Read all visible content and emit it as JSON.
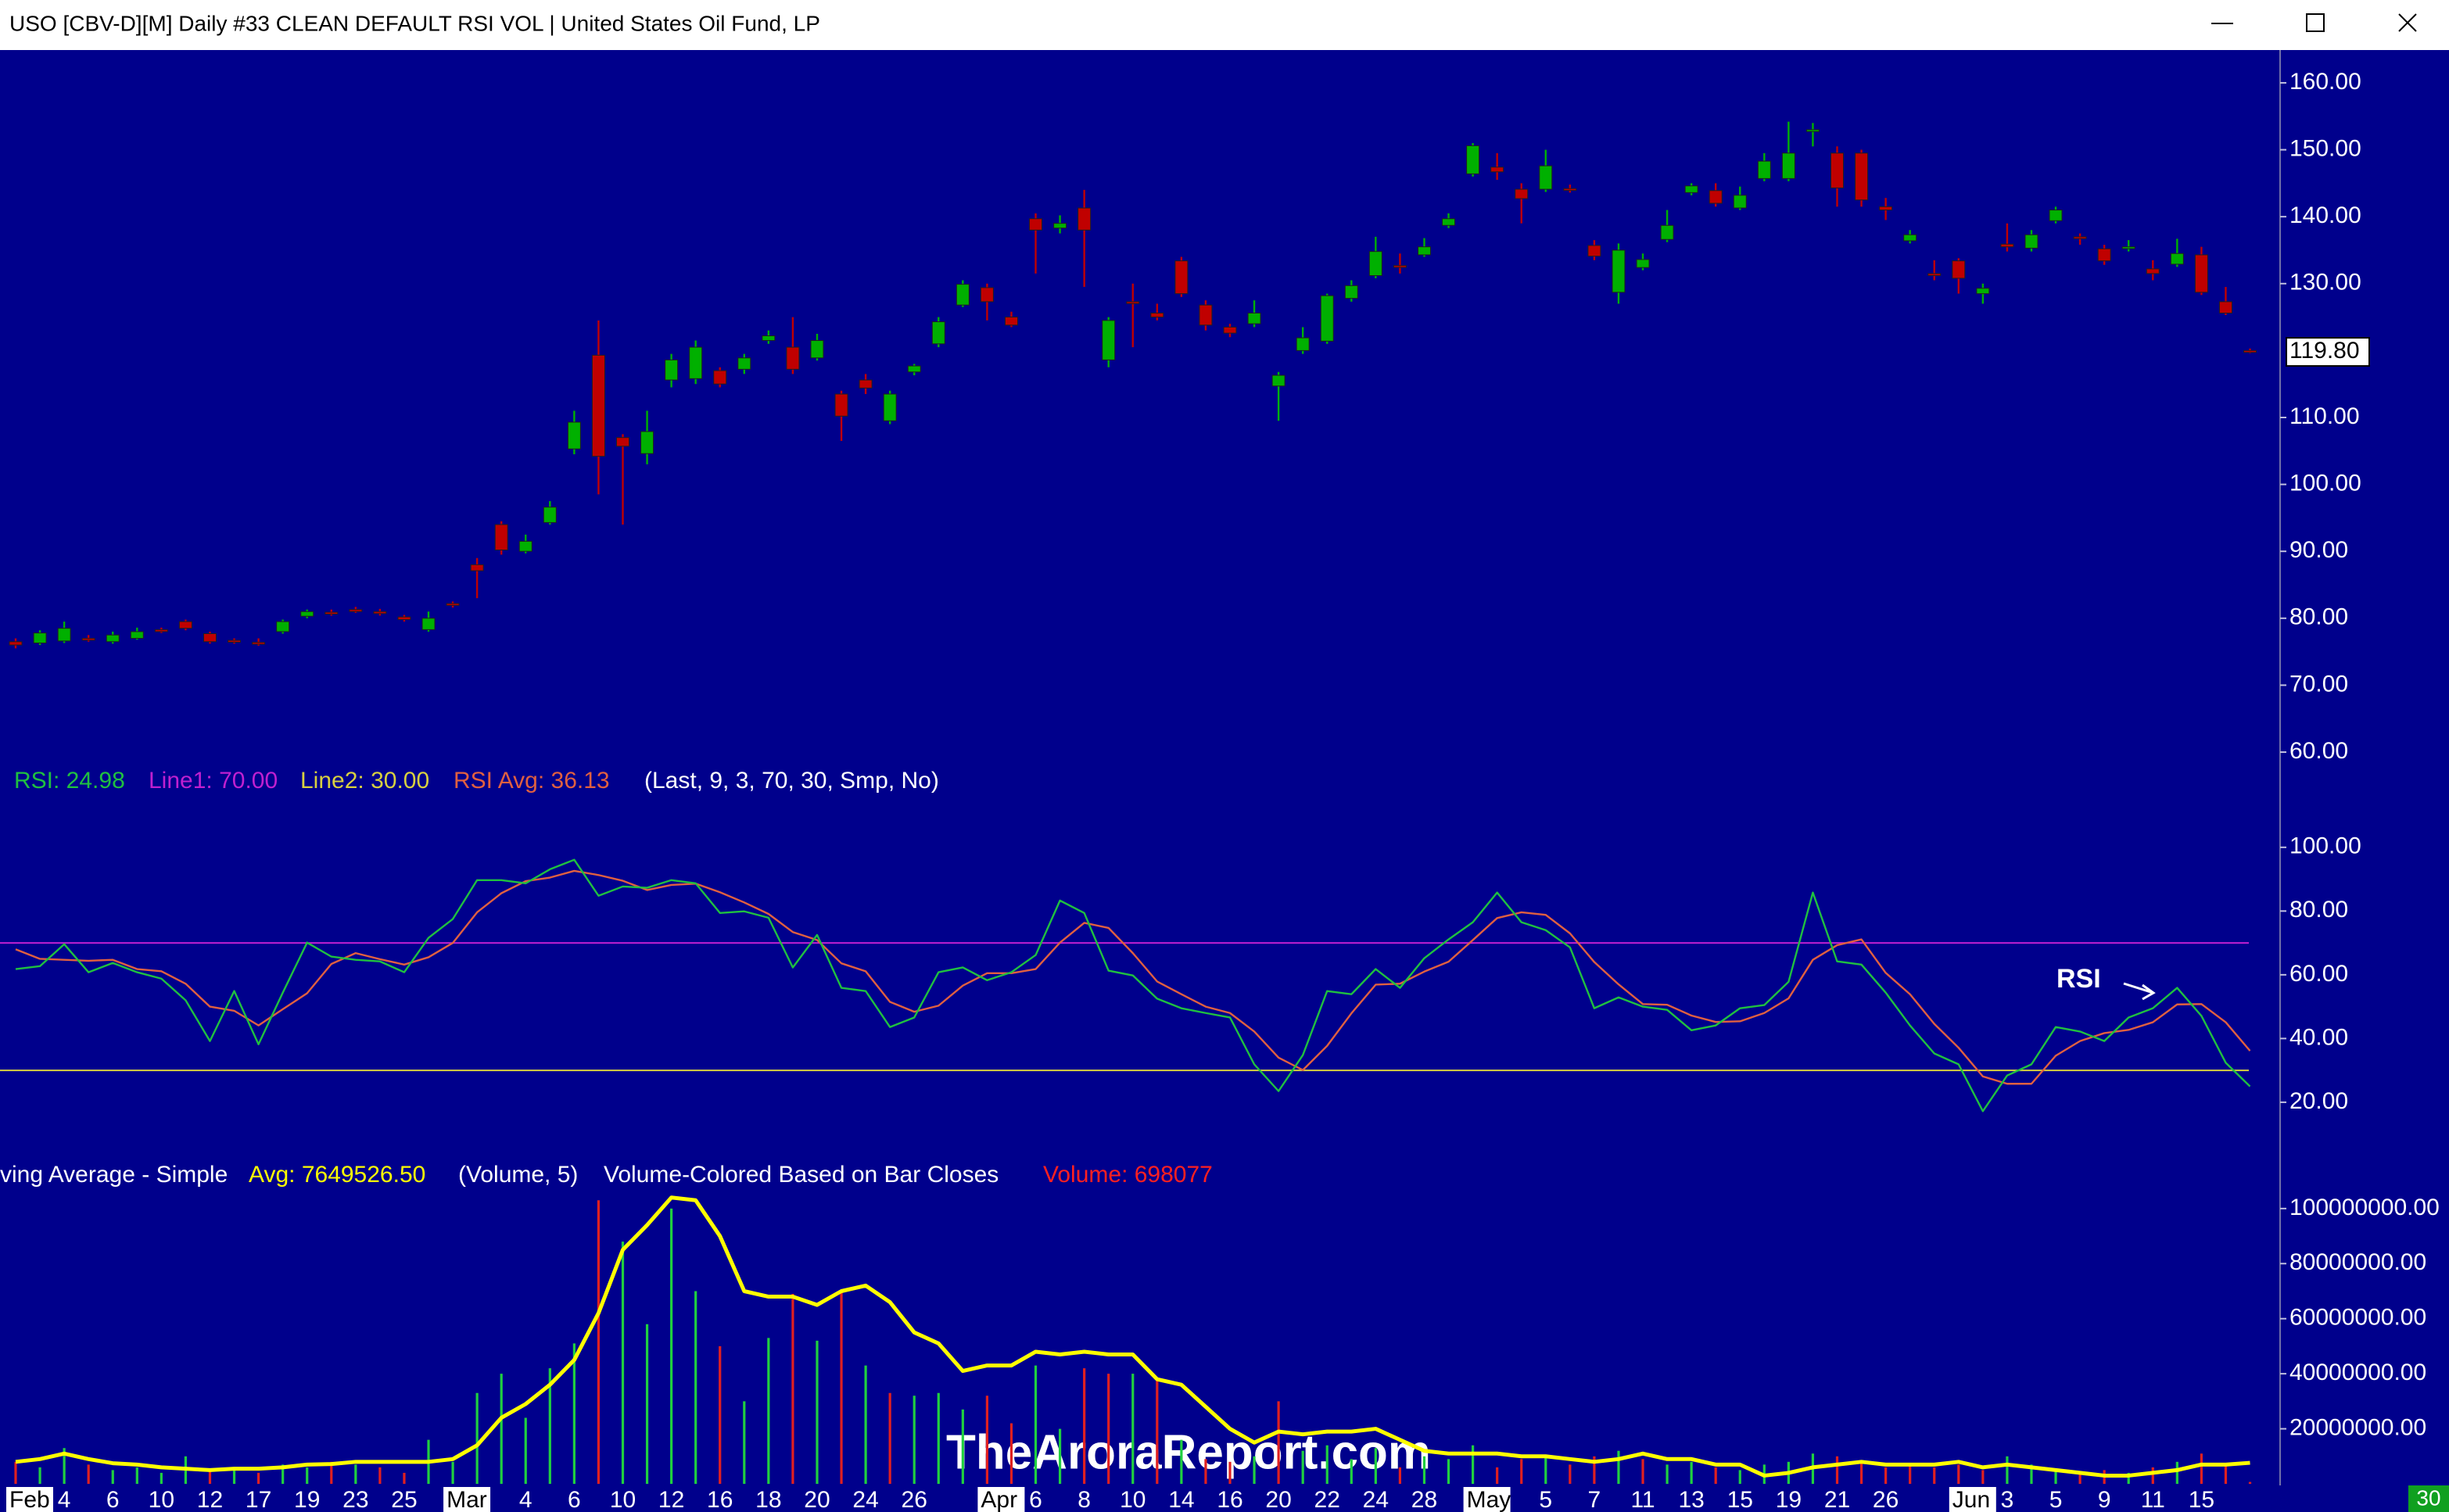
{
  "window": {
    "title": "USO [CBV-D][M]  Daily #33 CLEAN DEFAULT RSI VOL | United States Oil Fund, LP"
  },
  "watermark": "TheAroraReport.com",
  "corner_badge": "30",
  "chart_data": [
    {
      "type": "candlestick",
      "up_color": "#00b000",
      "down_color": "#c00000",
      "ylim": [
        57.9,
        164.9
      ],
      "yticks": [
        {
          "value": 160,
          "label": "160.00"
        },
        {
          "value": 150,
          "label": "150.00"
        },
        {
          "value": 140,
          "label": "140.00"
        },
        {
          "value": 130,
          "label": "130.00"
        },
        {
          "value": 110,
          "label": "110.00"
        },
        {
          "value": 100,
          "label": "100.00"
        },
        {
          "value": 90,
          "label": "90.00"
        },
        {
          "value": 80,
          "label": "80.00"
        },
        {
          "value": 70,
          "label": "70.00"
        },
        {
          "value": 60,
          "label": "60.00"
        }
      ],
      "last_label": "119.80",
      "categories": [
        "Feb",
        null,
        "4",
        null,
        "6",
        null,
        "10",
        null,
        "12",
        null,
        "17",
        null,
        "19",
        null,
        "23",
        null,
        "25",
        null,
        "Mar",
        null,
        null,
        "4",
        null,
        "6",
        null,
        "10",
        null,
        "12",
        null,
        "16",
        null,
        "18",
        null,
        "20",
        null,
        "24",
        null,
        "26",
        null,
        null,
        "Apr",
        null,
        "6",
        null,
        "8",
        null,
        "10",
        null,
        "14",
        null,
        "16",
        null,
        "20",
        null,
        "22",
        null,
        "24",
        null,
        "28",
        null,
        "May",
        null,
        null,
        "5",
        null,
        "7",
        null,
        "11",
        null,
        "13",
        null,
        "15",
        null,
        "19",
        null,
        "21",
        null,
        "26",
        null,
        null,
        "Jun",
        null,
        "3",
        null,
        "5",
        null,
        "9",
        null,
        "11",
        null,
        "15"
      ],
      "ohlc": [
        [
          76.5,
          77,
          75.5,
          76
        ],
        [
          76.3,
          78.2,
          76,
          77.8
        ],
        [
          76.6,
          79.5,
          76.3,
          78.5
        ],
        [
          77,
          77.5,
          76.5,
          76.8
        ],
        [
          76.5,
          78,
          76.2,
          77.5
        ],
        [
          77,
          78.6,
          76.8,
          78
        ],
        [
          78.3,
          78.6,
          77.8,
          78
        ],
        [
          79.5,
          79.8,
          78.2,
          78.5
        ],
        [
          77.7,
          78,
          76.2,
          76.5
        ],
        [
          76.7,
          77,
          76.2,
          76.5
        ],
        [
          76.4,
          77,
          75.9,
          76.2
        ],
        [
          78,
          79.8,
          77.7,
          79.5
        ],
        [
          80.3,
          81.3,
          80,
          81
        ],
        [
          80.9,
          81.3,
          80.4,
          80.7
        ],
        [
          81.3,
          81.7,
          80.8,
          81
        ],
        [
          81,
          81.4,
          80.4,
          80.7
        ],
        [
          80.2,
          80.5,
          79.5,
          79.8
        ],
        [
          78.3,
          81,
          78,
          80
        ],
        [
          82.2,
          82.5,
          81.6,
          82
        ],
        [
          88,
          89,
          83,
          87.1
        ],
        [
          94,
          94.5,
          89.5,
          90.2
        ],
        [
          90,
          92.5,
          89.7,
          91.5
        ],
        [
          94.3,
          97.5,
          94,
          96.6
        ],
        [
          105.3,
          111,
          104.5,
          109.3
        ],
        [
          119.3,
          124.5,
          98.5,
          104.2
        ],
        [
          107,
          107.5,
          94,
          105.7
        ],
        [
          104.6,
          111,
          103,
          107.9
        ],
        [
          115.6,
          119.5,
          114.5,
          118.6
        ],
        [
          115.8,
          121.5,
          115,
          120.5
        ],
        [
          117,
          117.5,
          114.5,
          115
        ],
        [
          117.2,
          119.5,
          116.5,
          118.9
        ],
        [
          121.5,
          123,
          121,
          122.2
        ],
        [
          120.5,
          125,
          116.5,
          117.2
        ],
        [
          118.9,
          122.5,
          118.5,
          121.5
        ],
        [
          113.5,
          114,
          106.5,
          110.2
        ],
        [
          115.6,
          116.5,
          113.5,
          114.4
        ],
        [
          109.5,
          114,
          109,
          113.5
        ],
        [
          116.8,
          118,
          116.3,
          117.7
        ],
        [
          121,
          125,
          120.5,
          124.3
        ],
        [
          126.8,
          130.5,
          126.5,
          129.9
        ],
        [
          129.4,
          130,
          124.5,
          127.3
        ],
        [
          125,
          125.8,
          123.5,
          123.8
        ],
        [
          139.7,
          140.5,
          131.5,
          138
        ],
        [
          138.3,
          140.2,
          137.5,
          139
        ],
        [
          141.3,
          144,
          129.5,
          138
        ],
        [
          118.6,
          125,
          117.5,
          124.5
        ],
        [
          127.3,
          130,
          120.5,
          127.1
        ],
        [
          125.6,
          127,
          124.5,
          125
        ],
        [
          133.4,
          134,
          128,
          128.5
        ],
        [
          126.8,
          127.5,
          123,
          123.8
        ],
        [
          123.5,
          124,
          122,
          122.6
        ],
        [
          124,
          127.5,
          123.5,
          125.6
        ],
        [
          114.7,
          116.8,
          109.5,
          116.3
        ],
        [
          120,
          123.5,
          119.5,
          121.9
        ],
        [
          121.4,
          128.5,
          121,
          128.2
        ],
        [
          127.8,
          130.5,
          127.3,
          129.7
        ],
        [
          131.2,
          137,
          130.8,
          134.8
        ],
        [
          132.7,
          134.5,
          131.5,
          132.5
        ],
        [
          134.3,
          136.8,
          134,
          135.5
        ],
        [
          138.7,
          140.5,
          138.3,
          139.7
        ],
        [
          146.4,
          151,
          146,
          150.6
        ],
        [
          147.4,
          149.5,
          145.5,
          146.7
        ],
        [
          144.1,
          145,
          139,
          142.7
        ],
        [
          144.1,
          150,
          143.7,
          147.6
        ],
        [
          144.2,
          144.8,
          143.6,
          144
        ],
        [
          135.7,
          136.5,
          133.5,
          134.1
        ],
        [
          128.7,
          136,
          127,
          135
        ],
        [
          132.4,
          134.5,
          132,
          133.6
        ],
        [
          136.6,
          141,
          136.2,
          138.7
        ],
        [
          143.6,
          145,
          143.2,
          144.6
        ],
        [
          143.9,
          145,
          141.5,
          142
        ],
        [
          141.3,
          144.5,
          141,
          143.2
        ],
        [
          145.7,
          149.5,
          145.3,
          148.3
        ],
        [
          145.7,
          154.2,
          145.3,
          149.5
        ],
        [
          152.8,
          154,
          150.5,
          153
        ],
        [
          149.5,
          150.5,
          141.5,
          144.3
        ],
        [
          149.5,
          150,
          141.5,
          142.5
        ],
        [
          141.5,
          142.8,
          139.5,
          141
        ],
        [
          136.4,
          138,
          136,
          137.3
        ],
        [
          131.5,
          133.5,
          130.5,
          131.2
        ],
        [
          133.4,
          133.8,
          128.5,
          130.8
        ],
        [
          128.5,
          130,
          127,
          129.3
        ],
        [
          135.9,
          139,
          134.8,
          135.5
        ],
        [
          135.3,
          138,
          134.8,
          137.3
        ],
        [
          139.4,
          141.5,
          139,
          141
        ],
        [
          137,
          137.5,
          135.8,
          136.8
        ],
        [
          135.2,
          135.8,
          132.8,
          133.4
        ],
        [
          135.3,
          136.5,
          134.8,
          135.5
        ],
        [
          132.2,
          133.5,
          130.5,
          131.5
        ],
        [
          132.9,
          136.7,
          132.5,
          134.5
        ],
        [
          134.3,
          135.5,
          128.3,
          128.7
        ],
        [
          127.3,
          129.5,
          125.3,
          125.6
        ],
        [
          120,
          120.3,
          119.6,
          119.8
        ]
      ]
    },
    {
      "type": "line",
      "ylim": [
        2.8,
        113.2
      ],
      "yticks": [
        {
          "value": 100,
          "label": "100.00"
        },
        {
          "value": 80,
          "label": "80.00"
        },
        {
          "value": 60,
          "label": "60.00"
        },
        {
          "value": 40,
          "label": "40.00"
        },
        {
          "value": 20,
          "label": "20.00"
        }
      ],
      "series": [
        {
          "name": "RSI: 24.98",
          "color": "#20c040",
          "values": [
            61.8,
            62.7,
            69.6,
            60.8,
            63.7,
            60.8,
            58.8,
            52,
            39.2,
            54.9,
            38.2,
            54.4,
            70.1,
            65.7,
            64.7,
            64.2,
            60.8,
            71.6,
            77.5,
            89.7,
            89.7,
            88.7,
            93.1,
            96.1,
            84.8,
            87.7,
            87.3,
            89.7,
            88.7,
            79.4,
            79.9,
            77.9,
            62.3,
            72.5,
            55.9,
            54.9,
            43.6,
            46.6,
            60.8,
            62.3,
            58.3,
            60.8,
            66.2,
            83.3,
            79.4,
            61.3,
            59.8,
            52.5,
            49.5,
            48,
            46.6,
            31.9,
            23.5,
            34.8,
            54.9,
            53.9,
            61.8,
            55.9,
            65.2,
            71.1,
            76.5,
            85.8,
            76.5,
            74,
            68.6,
            49.5,
            52.9,
            50,
            49,
            42.6,
            44.1,
            49.5,
            50.5,
            57.8,
            85.8,
            64.2,
            63.2,
            54.4,
            44.1,
            35.3,
            31.9,
            17.2,
            28.4,
            31.9,
            43.6,
            42.2,
            39.2,
            46.6,
            49.5,
            55.9,
            47.1,
            32.4,
            24.98
          ]
        },
        {
          "name": "RSI Avg: 36.13",
          "color": "#e06040",
          "values": [
            68,
            65,
            64.7,
            64.4,
            64.7,
            61.8,
            61.1,
            57.2,
            50,
            48.7,
            44.1,
            49.2,
            54.2,
            63.4,
            66.8,
            64.9,
            63.2,
            65.5,
            70,
            79.6,
            85.6,
            89.4,
            90.5,
            92.6,
            91.3,
            89.5,
            86.6,
            88.2,
            88.6,
            85.9,
            82.7,
            79.1,
            73.4,
            70.9,
            63.6,
            61.1,
            51.5,
            48.4,
            50.3,
            56.6,
            60.5,
            60.5,
            61.8,
            70.1,
            76.3,
            74.7,
            66.8,
            57.9,
            53.9,
            50,
            48,
            42.2,
            34,
            30.1,
            37.7,
            47.9,
            56.9,
            57.2,
            61,
            64.1,
            70.9,
            77.8,
            79.6,
            78.8,
            73,
            64,
            57,
            50.8,
            50.6,
            47.2,
            45.2,
            45.4,
            48,
            52.6,
            64.7,
            69.3,
            71.1,
            60.6,
            53.9,
            44.6,
            37.1,
            28.1,
            25.8,
            25.8,
            34.6,
            39.2,
            41.7,
            42.7,
            45.1,
            50.7,
            50.8,
            45.1,
            36.13
          ]
        }
      ],
      "reference_lines": [
        {
          "name": "Line1: 70.00",
          "value": 70,
          "color": "#c020d0"
        },
        {
          "name": "Line2: 30.00",
          "value": 30,
          "color": "#d8d040"
        }
      ],
      "parameters": "(Last, 9, 3, 70, 30, Smp, No)",
      "annotation": "RSI"
    },
    {
      "type": "bar",
      "title": "ving Average - Simple",
      "up_color": "#20d040",
      "down_color": "#e02020",
      "ylim": [
        0,
        104500000
      ],
      "yticks": [
        {
          "value": 100000000,
          "label": "100000000.00"
        },
        {
          "value": 80000000,
          "label": "80000000.00"
        },
        {
          "value": 60000000,
          "label": "60000000.00"
        },
        {
          "value": 40000000,
          "label": "40000000.00"
        },
        {
          "value": 20000000,
          "label": "20000000.00"
        }
      ],
      "parameters": "(Volume, 5)",
      "description": "Volume-Colored Based on Bar Closes",
      "series": [
        {
          "name": "Volume: 698077",
          "color": "#ff2020",
          "values": [
            8000000,
            6000000,
            13000000,
            7000000,
            5000000,
            6000000,
            4000000,
            10000000,
            5000000,
            6000000,
            4000000,
            7000000,
            6000000,
            8000000,
            7000000,
            6000000,
            4000000,
            16000000,
            8000000,
            33000000,
            40000000,
            24000000,
            42000000,
            51000000,
            103000000,
            88000000,
            58000000,
            100000000,
            70000000,
            50000000,
            30000000,
            53000000,
            69000000,
            52000000,
            70000000,
            43000000,
            33000000,
            32000000,
            33000000,
            27000000,
            32000000,
            22000000,
            43000000,
            20000000,
            42000000,
            40000000,
            40000000,
            38000000,
            16000000,
            9000000,
            8000000,
            10000000,
            30000000,
            12000000,
            14000000,
            9000000,
            13000000,
            6000000,
            10000000,
            9000000,
            14000000,
            6000000,
            9000000,
            10000000,
            7000000,
            10000000,
            12000000,
            9000000,
            7000000,
            8000000,
            6000000,
            5000000,
            7000000,
            8000000,
            11000000,
            10000000,
            8000000,
            6000000,
            7000000,
            6000000,
            7000000,
            5000000,
            10000000,
            7000000,
            5000000,
            4000000,
            5000000,
            4000000,
            6000000,
            8000000,
            11000000,
            7000000,
            698077
          ]
        },
        {
          "name": "Avg: 7649526.50",
          "color": "#ffff00",
          "values": [
            8000000,
            9000000,
            11000000,
            9000000,
            7500000,
            7000000,
            6000000,
            5500000,
            5000000,
            5500000,
            5500000,
            6000000,
            7000000,
            7200000,
            8000000,
            8000000,
            8000000,
            8000000,
            9000000,
            14000000,
            24000000,
            29000000,
            36000000,
            45000000,
            62000000,
            85000000,
            94000000,
            104000000,
            103000000,
            90000000,
            70000000,
            68000000,
            68000000,
            65000000,
            70000000,
            72000000,
            66000000,
            55000000,
            51000000,
            41000000,
            43000000,
            43000000,
            48000000,
            47000000,
            48000000,
            47000000,
            47000000,
            38000000,
            36000000,
            28000000,
            20000000,
            15000000,
            19000000,
            18000000,
            19000000,
            19000000,
            20000000,
            16000000,
            12000000,
            11000000,
            11000000,
            11000000,
            10000000,
            10000000,
            9000000,
            8000000,
            9000000,
            11000000,
            9000000,
            9000000,
            7000000,
            7000000,
            3000000,
            4000000,
            6000000,
            7000000,
            8000000,
            7000000,
            7000000,
            7000000,
            8000000,
            6000000,
            7000000,
            6000000,
            5000000,
            4000000,
            3000000,
            3000000,
            4000000,
            5000000,
            7000000,
            7000000,
            7649526.5
          ]
        }
      ]
    }
  ]
}
